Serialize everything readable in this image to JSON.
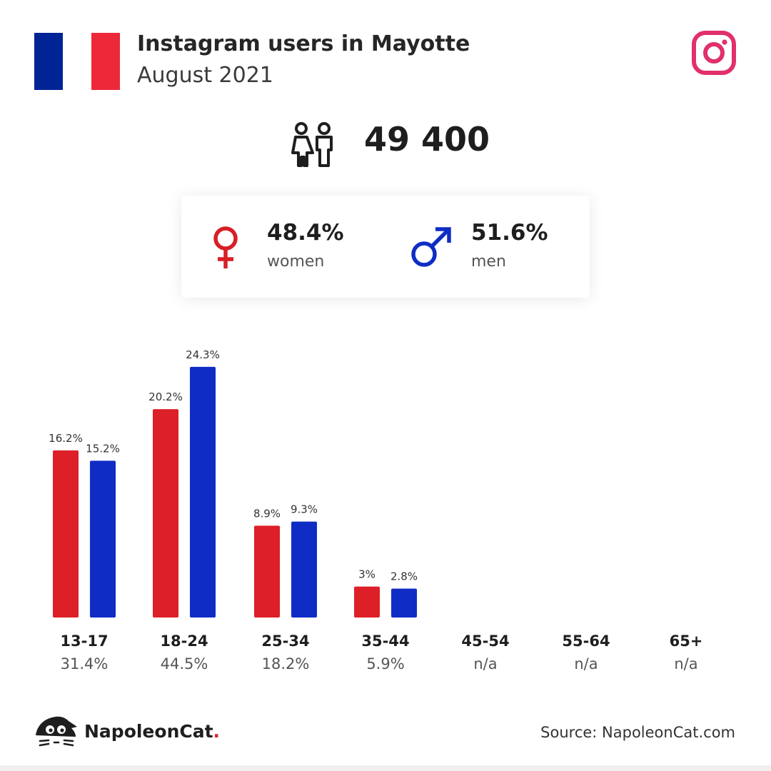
{
  "header": {
    "title": "Instagram users in Mayotte",
    "subtitle": "August 2021",
    "flag_colors": [
      "#002395",
      "#ffffff",
      "#ed2939"
    ],
    "platform_icon": "instagram-icon"
  },
  "summary": {
    "total_users": "49 400",
    "icon": "people-icon",
    "women": {
      "value": "48.4%",
      "label": "women",
      "icon": "female-icon",
      "color": "#d81e27"
    },
    "men": {
      "value": "51.6%",
      "label": "men",
      "icon": "male-icon",
      "color": "#0f2dc4"
    }
  },
  "chart_data": {
    "type": "bar",
    "categories": [
      "13-17",
      "18-24",
      "25-34",
      "35-44",
      "45-54",
      "55-64",
      "65+"
    ],
    "category_totals": [
      "31.4%",
      "44.5%",
      "18.2%",
      "5.9%",
      "n/a",
      "n/a",
      "n/a"
    ],
    "series": [
      {
        "color": "#dd2027",
        "values": [
          16.2,
          20.2,
          8.9,
          3,
          null,
          null,
          null
        ],
        "labels": [
          "16.2%",
          "20.2%",
          "8.9%",
          "3%",
          "",
          "",
          ""
        ]
      },
      {
        "color": "#0f2dc4",
        "values": [
          15.2,
          24.3,
          9.3,
          2.8,
          null,
          null,
          null
        ],
        "labels": [
          "15.2%",
          "24.3%",
          "9.3%",
          "2.8%",
          "",
          "",
          ""
        ]
      }
    ],
    "ylim": [
      0,
      25
    ],
    "grid": false
  },
  "footer": {
    "brand": "NapoleonCat",
    "brand_dot": ".",
    "source": "Source: NapoleonCat.com",
    "logo_icon": "napoleoncat-logo-icon"
  }
}
